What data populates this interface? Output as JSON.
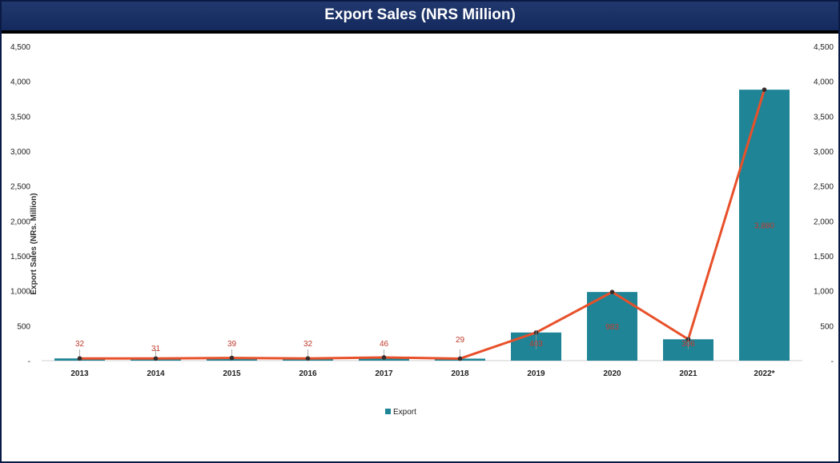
{
  "title": "Export Sales (NRS Million)",
  "colors": {
    "bar": "#1f8596",
    "line": "#e8502a",
    "marker": "#3a2a2a",
    "label": "#c0392b"
  },
  "chart_data": {
    "type": "bar",
    "title": "Export Sales (NRS Million)",
    "ylabel": "Export Sales (NRs. Million)",
    "xlabel": "",
    "categories": [
      "2013",
      "2014",
      "2015",
      "2016",
      "2017",
      "2018",
      "2019",
      "2020",
      "2021",
      "2022*"
    ],
    "series": [
      {
        "name": "Export",
        "kind": "bar",
        "values": [
          32,
          31,
          39,
          32,
          46,
          29,
          403,
          983,
          306,
          3880
        ]
      },
      {
        "kind": "line",
        "values": [
          32,
          31,
          39,
          32,
          46,
          29,
          403,
          983,
          306,
          3880
        ]
      }
    ],
    "data_labels": [
      "32",
      "31",
      "39",
      "32",
      "46",
      "29",
      "403",
      "983",
      "306",
      "3,880"
    ],
    "ylim": [
      0,
      4500
    ],
    "yticks": [
      "-",
      "500",
      "1,000",
      "1,500",
      "2,000",
      "2,500",
      "3,000",
      "3,500",
      "4,000",
      "4,500"
    ],
    "secondary_yticks": [
      "-",
      "500",
      "1,000",
      "1,500",
      "2,000",
      "2,500",
      "3,000",
      "3,500",
      "4,000",
      "4,500"
    ],
    "grid": false,
    "legend_position": "bottom"
  }
}
